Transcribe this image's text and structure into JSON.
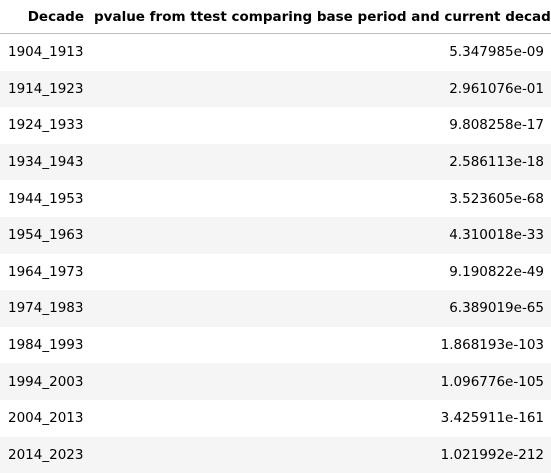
{
  "table": {
    "columns": [
      "Decade",
      "pvalue from ttest comparing base period and current decade"
    ],
    "rows": [
      {
        "decade": "1904_1913",
        "pvalue": "5.347985e-09"
      },
      {
        "decade": "1914_1923",
        "pvalue": "2.961076e-01"
      },
      {
        "decade": "1924_1933",
        "pvalue": "9.808258e-17"
      },
      {
        "decade": "1934_1943",
        "pvalue": "2.586113e-18"
      },
      {
        "decade": "1944_1953",
        "pvalue": "3.523605e-68"
      },
      {
        "decade": "1954_1963",
        "pvalue": "4.310018e-33"
      },
      {
        "decade": "1964_1973",
        "pvalue": "9.190822e-49"
      },
      {
        "decade": "1974_1983",
        "pvalue": "6.389019e-65"
      },
      {
        "decade": "1984_1993",
        "pvalue": "1.868193e-103"
      },
      {
        "decade": "1994_2003",
        "pvalue": "1.096776e-105"
      },
      {
        "decade": "2004_2013",
        "pvalue": "3.425911e-161"
      },
      {
        "decade": "2014_2023",
        "pvalue": "1.021992e-212"
      }
    ]
  }
}
